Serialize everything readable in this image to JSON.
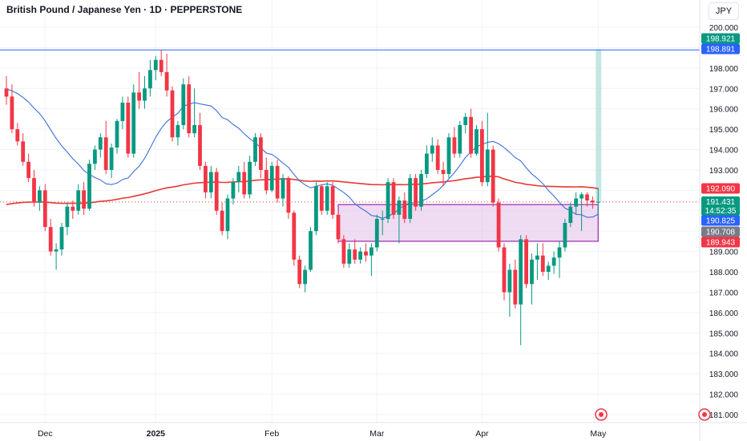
{
  "header": {
    "title": "British Pound / Japanese Yen · 1D · PEPPERSTONE",
    "currency_button": "JPY"
  },
  "price_tags": {
    "top_green": "198.921",
    "line_blue": "198.891",
    "sma_red": "192.090",
    "last_price": "191.431",
    "countdown": "14:52:35",
    "sma_blue": "190.825",
    "gray": "190.708",
    "red_low": "189.943"
  },
  "colors": {
    "up": "#089981",
    "down": "#f23645",
    "sma_long": "#e53935",
    "sma_short": "#3d70d8",
    "hline": "#2962ff",
    "zone_fill": "#e1bee7",
    "zone_border": "#9c27b0",
    "projection": "#b2dfdb"
  },
  "chart_data": {
    "type": "candlestick",
    "title": "British Pound / Japanese Yen · 1D · PEPPERSTONE",
    "yaxis_ticks": [
      181,
      182,
      183,
      184,
      185,
      186,
      187,
      188,
      189,
      190,
      191,
      192,
      193,
      194,
      195,
      196,
      197,
      198,
      199,
      200
    ],
    "ylim": [
      180.6,
      200.4
    ],
    "xaxis_labels": [
      "Dec",
      "2025",
      "Feb",
      "Mar",
      "Apr",
      "May"
    ],
    "horizontal_line": 198.891,
    "zone": {
      "top": 191.3,
      "bottom": 189.5
    },
    "candles": [
      [
        197.0,
        197.6,
        196.2,
        196.6
      ],
      [
        196.6,
        197.2,
        194.8,
        195.0
      ],
      [
        195.0,
        195.3,
        194.2,
        194.4
      ],
      [
        194.4,
        194.8,
        193.2,
        193.4
      ],
      [
        193.4,
        193.8,
        192.4,
        192.6
      ],
      [
        192.6,
        193.0,
        191.2,
        191.4
      ],
      [
        191.4,
        192.2,
        191.0,
        192.0
      ],
      [
        192.0,
        192.3,
        190.0,
        190.2
      ],
      [
        190.2,
        190.6,
        188.8,
        189.0
      ],
      [
        189.0,
        189.4,
        188.1,
        189.1
      ],
      [
        189.1,
        190.4,
        188.8,
        190.2
      ],
      [
        190.2,
        191.4,
        189.8,
        191.2
      ],
      [
        191.2,
        191.5,
        190.6,
        191.0
      ],
      [
        191.0,
        192.3,
        190.8,
        192.0
      ],
      [
        192.0,
        192.4,
        190.8,
        191.1
      ],
      [
        191.1,
        193.5,
        191.0,
        193.3
      ],
      [
        193.3,
        194.2,
        193.0,
        194.0
      ],
      [
        194.0,
        194.8,
        193.6,
        194.6
      ],
      [
        194.6,
        195.4,
        192.8,
        193.0
      ],
      [
        193.0,
        194.3,
        192.6,
        194.1
      ],
      [
        194.1,
        195.5,
        193.8,
        195.4
      ],
      [
        195.4,
        196.6,
        195.0,
        196.3
      ],
      [
        196.3,
        196.6,
        193.6,
        193.8
      ],
      [
        193.8,
        197.2,
        193.6,
        196.8
      ],
      [
        196.8,
        197.8,
        196.0,
        196.4
      ],
      [
        196.4,
        197.6,
        196.0,
        197.0
      ],
      [
        197.0,
        198.4,
        196.6,
        197.9
      ],
      [
        197.9,
        198.6,
        197.4,
        198.4
      ],
      [
        198.4,
        198.9,
        197.6,
        197.8
      ],
      [
        197.8,
        198.7,
        196.6,
        196.9
      ],
      [
        196.9,
        197.1,
        194.4,
        194.6
      ],
      [
        194.6,
        195.4,
        194.2,
        195.2
      ],
      [
        195.2,
        197.5,
        195.0,
        197.2
      ],
      [
        197.2,
        197.6,
        194.6,
        194.8
      ],
      [
        194.8,
        197.0,
        194.6,
        195.2
      ],
      [
        195.2,
        195.8,
        193.0,
        193.2
      ],
      [
        193.2,
        193.4,
        191.6,
        191.9
      ],
      [
        191.9,
        193.2,
        191.6,
        192.9
      ],
      [
        192.9,
        193.1,
        190.8,
        191.0
      ],
      [
        191.0,
        191.4,
        189.8,
        190.0
      ],
      [
        190.0,
        191.8,
        189.6,
        191.6
      ],
      [
        191.6,
        192.6,
        191.3,
        192.4
      ],
      [
        192.4,
        193.2,
        191.9,
        192.9
      ],
      [
        192.9,
        193.4,
        191.6,
        191.8
      ],
      [
        191.8,
        193.7,
        191.6,
        193.4
      ],
      [
        193.4,
        194.8,
        193.2,
        194.6
      ],
      [
        194.6,
        194.8,
        192.6,
        193.0
      ],
      [
        193.0,
        193.6,
        191.8,
        192.0
      ],
      [
        192.0,
        193.4,
        191.9,
        193.2
      ],
      [
        193.2,
        193.5,
        191.4,
        191.6
      ],
      [
        191.6,
        192.8,
        191.2,
        192.6
      ],
      [
        192.6,
        192.7,
        190.6,
        190.9
      ],
      [
        190.9,
        191.0,
        188.3,
        188.6
      ],
      [
        188.6,
        188.8,
        187.2,
        187.4
      ],
      [
        187.4,
        188.3,
        187.0,
        188.1
      ],
      [
        188.1,
        190.2,
        188.0,
        190.0
      ],
      [
        190.0,
        192.4,
        189.8,
        192.2
      ],
      [
        192.2,
        192.3,
        190.8,
        191.0
      ],
      [
        191.0,
        192.4,
        190.8,
        192.2
      ],
      [
        192.2,
        192.4,
        190.6,
        190.8
      ],
      [
        190.8,
        191.0,
        189.4,
        189.6
      ],
      [
        189.6,
        189.8,
        188.2,
        188.4
      ],
      [
        188.4,
        189.4,
        188.2,
        189.1
      ],
      [
        189.1,
        189.6,
        188.4,
        188.6
      ],
      [
        188.6,
        189.2,
        188.4,
        189.0
      ],
      [
        189.0,
        189.4,
        188.5,
        188.8
      ],
      [
        188.8,
        189.4,
        187.8,
        189.2
      ],
      [
        189.2,
        190.8,
        189.0,
        190.6
      ],
      [
        190.6,
        191.0,
        189.8,
        190.6
      ],
      [
        190.6,
        192.6,
        190.4,
        192.4
      ],
      [
        192.4,
        192.6,
        190.6,
        190.8
      ],
      [
        190.8,
        191.7,
        189.4,
        191.5
      ],
      [
        191.5,
        191.9,
        190.4,
        190.6
      ],
      [
        190.6,
        192.8,
        190.4,
        192.6
      ],
      [
        192.6,
        192.8,
        191.0,
        191.2
      ],
      [
        191.2,
        193.0,
        191.0,
        192.8
      ],
      [
        192.8,
        194.2,
        192.6,
        193.8
      ],
      [
        193.8,
        194.6,
        193.4,
        194.2
      ],
      [
        194.2,
        194.5,
        192.8,
        193.0
      ],
      [
        193.0,
        193.4,
        192.2,
        192.8
      ],
      [
        192.8,
        194.8,
        192.6,
        194.6
      ],
      [
        194.6,
        195.1,
        193.6,
        193.8
      ],
      [
        193.8,
        195.4,
        193.6,
        195.2
      ],
      [
        195.2,
        195.8,
        194.8,
        195.6
      ],
      [
        195.6,
        196.0,
        193.6,
        193.8
      ],
      [
        193.8,
        195.2,
        193.7,
        195.0
      ],
      [
        195.0,
        195.4,
        192.2,
        192.4
      ],
      [
        192.4,
        195.8,
        192.2,
        194.0
      ],
      [
        194.0,
        194.2,
        191.2,
        191.4
      ],
      [
        191.4,
        191.6,
        189.0,
        189.2
      ],
      [
        189.2,
        189.4,
        186.6,
        187.0
      ],
      [
        187.0,
        188.4,
        185.8,
        188.1
      ],
      [
        188.1,
        188.6,
        186.2,
        186.4
      ],
      [
        186.4,
        189.8,
        184.4,
        189.6
      ],
      [
        189.6,
        189.8,
        187.2,
        187.4
      ],
      [
        187.4,
        188.9,
        186.4,
        188.6
      ],
      [
        188.6,
        189.4,
        187.6,
        188.8
      ],
      [
        188.8,
        189.4,
        187.8,
        188.0
      ],
      [
        188.0,
        188.5,
        187.6,
        188.3
      ],
      [
        188.3,
        189.0,
        187.9,
        188.7
      ],
      [
        188.7,
        189.5,
        187.7,
        189.2
      ],
      [
        189.2,
        190.6,
        189.0,
        190.4
      ],
      [
        190.4,
        191.4,
        190.2,
        191.2
      ],
      [
        191.2,
        191.9,
        190.8,
        191.6
      ],
      [
        191.6,
        191.9,
        190.0,
        191.8
      ],
      [
        191.8,
        191.9,
        191.2,
        191.5
      ],
      [
        191.5,
        191.7,
        191.1,
        191.4
      ],
      [
        191.4,
        192.1,
        190.8,
        191.43
      ]
    ]
  }
}
